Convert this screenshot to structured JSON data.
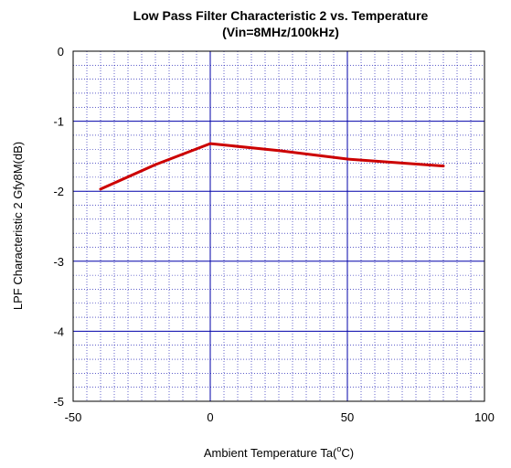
{
  "chart_data": {
    "type": "line",
    "title": "Low Pass Filter Characteristic 2 vs. Temperature",
    "subtitle": "(Vin=8MHz/100kHz)",
    "xlabel_main": "Ambient Temperature  Ta(",
    "xlabel_sup": "o",
    "xlabel_end": "C)",
    "ylabel": "LPF Characteristic 2 Gfy8M(dB)",
    "xlim": [
      -50,
      100
    ],
    "ylim": [
      -5,
      0
    ],
    "x_ticks": [
      "-50",
      "0",
      "50",
      "100"
    ],
    "y_ticks": [
      "0",
      "-1",
      "-2",
      "-3",
      "-4",
      "-5"
    ],
    "grid": true,
    "colors": {
      "series": "#cc0000",
      "major_grid": "#0000aa",
      "minor_grid": "#0000aa"
    },
    "series": [
      {
        "x": [
          -40,
          -20,
          0,
          25,
          50,
          85
        ],
        "values": [
          -1.97,
          -1.62,
          -1.32,
          -1.42,
          -1.54,
          -1.64
        ]
      }
    ]
  }
}
